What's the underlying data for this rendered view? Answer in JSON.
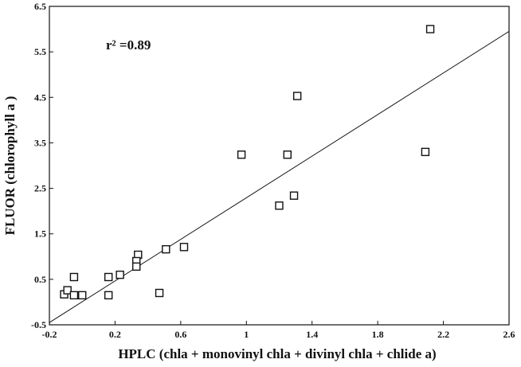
{
  "chart_data": {
    "type": "scatter",
    "x_label": "HPLC (chla + monovinyl chla + divinyl chla + chlide a)",
    "y_label": "FLUOR  (chlorophyll a )",
    "annotation": "r² =0.89",
    "color": "#111111",
    "x": [
      2.12,
      1.31,
      0.97,
      1.25,
      2.09,
      1.2,
      1.29,
      0.62,
      0.51,
      0.34,
      0.33,
      0.33,
      0.23,
      0.16,
      -0.05,
      -0.11,
      -0.09,
      -0.05,
      0.0,
      0.16,
      0.47
    ],
    "values": [
      6.0,
      4.53,
      3.24,
      3.24,
      3.3,
      2.12,
      2.34,
      1.21,
      1.16,
      1.04,
      0.9,
      0.78,
      0.6,
      0.55,
      0.55,
      0.17,
      0.26,
      0.15,
      0.15,
      0.15,
      0.2
    ],
    "fit": {
      "x": [
        -0.2,
        2.6
      ],
      "y": [
        -0.45,
        5.95
      ]
    },
    "xlim": [
      -0.2,
      2.6
    ],
    "xticks": [
      -0.2,
      0.2,
      0.6,
      1,
      1.4,
      1.8,
      2.2,
      2.6
    ],
    "ylim": [
      -0.5,
      6.5
    ],
    "yticks": [
      -0.5,
      0.5,
      1.5,
      2.5,
      3.5,
      4.5,
      5.5,
      6.5
    ]
  }
}
